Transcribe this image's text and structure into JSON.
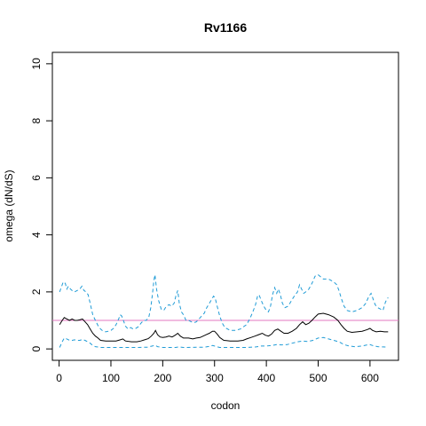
{
  "chart_data": {
    "type": "line",
    "title": "Rv1166",
    "xlabel": "codon",
    "ylabel": "omega (dN/dS)",
    "xlim": [
      -13,
      655
    ],
    "ylim": [
      -0.4,
      10.4
    ],
    "xticks": [
      0,
      100,
      200,
      300,
      400,
      500,
      600
    ],
    "yticks": [
      0,
      2,
      4,
      6,
      8,
      10
    ],
    "grid": false,
    "reference_line": {
      "y": 1,
      "color": "#e377c2"
    },
    "series": [
      {
        "role": "estimate",
        "color": "#000000",
        "dash": "solid",
        "points": [
          [
            1,
            0.85
          ],
          [
            6,
            1.0
          ],
          [
            10,
            1.1
          ],
          [
            15,
            1.05
          ],
          [
            20,
            1.0
          ],
          [
            25,
            1.05
          ],
          [
            30,
            1.0
          ],
          [
            35,
            1.0
          ],
          [
            40,
            1.02
          ],
          [
            45,
            1.05
          ],
          [
            50,
            0.95
          ],
          [
            55,
            0.85
          ],
          [
            60,
            0.7
          ],
          [
            65,
            0.55
          ],
          [
            70,
            0.45
          ],
          [
            75,
            0.38
          ],
          [
            80,
            0.3
          ],
          [
            90,
            0.28
          ],
          [
            100,
            0.28
          ],
          [
            110,
            0.28
          ],
          [
            118,
            0.32
          ],
          [
            123,
            0.35
          ],
          [
            128,
            0.28
          ],
          [
            140,
            0.25
          ],
          [
            150,
            0.25
          ],
          [
            158,
            0.28
          ],
          [
            165,
            0.32
          ],
          [
            172,
            0.36
          ],
          [
            178,
            0.45
          ],
          [
            183,
            0.55
          ],
          [
            186,
            0.65
          ],
          [
            190,
            0.5
          ],
          [
            195,
            0.42
          ],
          [
            200,
            0.4
          ],
          [
            206,
            0.42
          ],
          [
            212,
            0.45
          ],
          [
            218,
            0.42
          ],
          [
            224,
            0.48
          ],
          [
            229,
            0.55
          ],
          [
            234,
            0.45
          ],
          [
            240,
            0.38
          ],
          [
            250,
            0.38
          ],
          [
            258,
            0.35
          ],
          [
            265,
            0.38
          ],
          [
            272,
            0.4
          ],
          [
            278,
            0.45
          ],
          [
            284,
            0.5
          ],
          [
            290,
            0.55
          ],
          [
            296,
            0.62
          ],
          [
            300,
            0.62
          ],
          [
            305,
            0.52
          ],
          [
            310,
            0.4
          ],
          [
            318,
            0.3
          ],
          [
            330,
            0.28
          ],
          [
            345,
            0.28
          ],
          [
            355,
            0.3
          ],
          [
            362,
            0.35
          ],
          [
            370,
            0.4
          ],
          [
            378,
            0.45
          ],
          [
            385,
            0.5
          ],
          [
            392,
            0.55
          ],
          [
            398,
            0.48
          ],
          [
            404,
            0.45
          ],
          [
            410,
            0.52
          ],
          [
            416,
            0.65
          ],
          [
            422,
            0.7
          ],
          [
            428,
            0.62
          ],
          [
            434,
            0.55
          ],
          [
            442,
            0.55
          ],
          [
            450,
            0.62
          ],
          [
            458,
            0.72
          ],
          [
            464,
            0.85
          ],
          [
            470,
            0.95
          ],
          [
            476,
            0.85
          ],
          [
            482,
            0.9
          ],
          [
            488,
            1.0
          ],
          [
            494,
            1.12
          ],
          [
            500,
            1.22
          ],
          [
            510,
            1.25
          ],
          [
            520,
            1.2
          ],
          [
            530,
            1.12
          ],
          [
            538,
            1.0
          ],
          [
            544,
            0.85
          ],
          [
            550,
            0.72
          ],
          [
            556,
            0.62
          ],
          [
            565,
            0.58
          ],
          [
            575,
            0.6
          ],
          [
            585,
            0.62
          ],
          [
            595,
            0.68
          ],
          [
            600,
            0.72
          ],
          [
            605,
            0.65
          ],
          [
            612,
            0.6
          ],
          [
            620,
            0.62
          ],
          [
            628,
            0.6
          ],
          [
            635,
            0.6
          ]
        ]
      },
      {
        "role": "upper-bound",
        "color": "#1f9bd6",
        "dash": "dashed",
        "points": [
          [
            1,
            2.0
          ],
          [
            5,
            2.2
          ],
          [
            8,
            2.35
          ],
          [
            12,
            2.3
          ],
          [
            15,
            2.1
          ],
          [
            18,
            2.2
          ],
          [
            22,
            2.1
          ],
          [
            25,
            2.05
          ],
          [
            30,
            2.0
          ],
          [
            35,
            2.05
          ],
          [
            40,
            2.1
          ],
          [
            44,
            2.2
          ],
          [
            48,
            2.05
          ],
          [
            52,
            2.0
          ],
          [
            56,
            1.9
          ],
          [
            60,
            1.6
          ],
          [
            65,
            1.2
          ],
          [
            70,
            1.0
          ],
          [
            75,
            0.82
          ],
          [
            80,
            0.7
          ],
          [
            85,
            0.62
          ],
          [
            90,
            0.6
          ],
          [
            95,
            0.62
          ],
          [
            100,
            0.65
          ],
          [
            105,
            0.72
          ],
          [
            110,
            0.85
          ],
          [
            115,
            1.05
          ],
          [
            118,
            1.2
          ],
          [
            121,
            1.15
          ],
          [
            125,
            0.95
          ],
          [
            128,
            0.8
          ],
          [
            133,
            0.7
          ],
          [
            138,
            0.75
          ],
          [
            143,
            0.7
          ],
          [
            148,
            0.72
          ],
          [
            153,
            0.78
          ],
          [
            158,
            0.9
          ],
          [
            163,
            1.0
          ],
          [
            168,
            1.0
          ],
          [
            173,
            1.1
          ],
          [
            177,
            1.45
          ],
          [
            180,
            1.9
          ],
          [
            183,
            2.4
          ],
          [
            185,
            2.6
          ],
          [
            188,
            2.1
          ],
          [
            192,
            1.7
          ],
          [
            197,
            1.4
          ],
          [
            202,
            1.35
          ],
          [
            207,
            1.5
          ],
          [
            212,
            1.55
          ],
          [
            217,
            1.5
          ],
          [
            222,
            1.6
          ],
          [
            226,
            1.9
          ],
          [
            229,
            2.05
          ],
          [
            232,
            1.6
          ],
          [
            236,
            1.3
          ],
          [
            240,
            1.2
          ],
          [
            245,
            1.0
          ],
          [
            250,
            1.0
          ],
          [
            255,
            0.95
          ],
          [
            260,
            0.92
          ],
          [
            265,
            0.95
          ],
          [
            270,
            1.05
          ],
          [
            275,
            1.15
          ],
          [
            280,
            1.25
          ],
          [
            285,
            1.45
          ],
          [
            290,
            1.6
          ],
          [
            295,
            1.75
          ],
          [
            298,
            1.85
          ],
          [
            301,
            1.8
          ],
          [
            305,
            1.5
          ],
          [
            310,
            1.15
          ],
          [
            315,
            0.9
          ],
          [
            320,
            0.75
          ],
          [
            330,
            0.65
          ],
          [
            340,
            0.65
          ],
          [
            350,
            0.7
          ],
          [
            356,
            0.78
          ],
          [
            362,
            0.85
          ],
          [
            368,
            1.05
          ],
          [
            374,
            1.3
          ],
          [
            379,
            1.55
          ],
          [
            383,
            1.85
          ],
          [
            386,
            1.9
          ],
          [
            390,
            1.7
          ],
          [
            395,
            1.5
          ],
          [
            400,
            1.35
          ],
          [
            404,
            1.3
          ],
          [
            408,
            1.5
          ],
          [
            412,
            1.9
          ],
          [
            416,
            2.15
          ],
          [
            420,
            1.95
          ],
          [
            423,
            2.1
          ],
          [
            427,
            1.9
          ],
          [
            431,
            1.6
          ],
          [
            436,
            1.45
          ],
          [
            442,
            1.5
          ],
          [
            447,
            1.65
          ],
          [
            452,
            1.8
          ],
          [
            456,
            1.9
          ],
          [
            460,
            2.0
          ],
          [
            464,
            2.25
          ],
          [
            468,
            2.1
          ],
          [
            472,
            1.95
          ],
          [
            476,
            2.0
          ],
          [
            482,
            2.1
          ],
          [
            488,
            2.3
          ],
          [
            494,
            2.55
          ],
          [
            500,
            2.6
          ],
          [
            510,
            2.45
          ],
          [
            520,
            2.45
          ],
          [
            530,
            2.35
          ],
          [
            536,
            2.25
          ],
          [
            540,
            2.05
          ],
          [
            545,
            1.75
          ],
          [
            550,
            1.5
          ],
          [
            556,
            1.35
          ],
          [
            565,
            1.3
          ],
          [
            575,
            1.35
          ],
          [
            585,
            1.45
          ],
          [
            592,
            1.6
          ],
          [
            598,
            1.85
          ],
          [
            602,
            1.95
          ],
          [
            606,
            1.75
          ],
          [
            610,
            1.55
          ],
          [
            615,
            1.45
          ],
          [
            620,
            1.4
          ],
          [
            625,
            1.35
          ],
          [
            630,
            1.65
          ],
          [
            635,
            1.8
          ]
        ]
      },
      {
        "role": "lower-bound",
        "color": "#1f9bd6",
        "dash": "dashed",
        "points": [
          [
            1,
            0.05
          ],
          [
            6,
            0.25
          ],
          [
            10,
            0.38
          ],
          [
            15,
            0.35
          ],
          [
            20,
            0.3
          ],
          [
            25,
            0.3
          ],
          [
            30,
            0.32
          ],
          [
            35,
            0.3
          ],
          [
            40,
            0.3
          ],
          [
            45,
            0.33
          ],
          [
            50,
            0.3
          ],
          [
            55,
            0.25
          ],
          [
            60,
            0.2
          ],
          [
            65,
            0.12
          ],
          [
            70,
            0.08
          ],
          [
            80,
            0.05
          ],
          [
            100,
            0.05
          ],
          [
            150,
            0.05
          ],
          [
            170,
            0.06
          ],
          [
            180,
            0.1
          ],
          [
            185,
            0.13
          ],
          [
            190,
            0.08
          ],
          [
            200,
            0.05
          ],
          [
            225,
            0.05
          ],
          [
            230,
            0.07
          ],
          [
            240,
            0.05
          ],
          [
            280,
            0.06
          ],
          [
            290,
            0.09
          ],
          [
            296,
            0.12
          ],
          [
            300,
            0.1
          ],
          [
            310,
            0.05
          ],
          [
            360,
            0.05
          ],
          [
            380,
            0.07
          ],
          [
            390,
            0.1
          ],
          [
            400,
            0.1
          ],
          [
            410,
            0.12
          ],
          [
            420,
            0.15
          ],
          [
            430,
            0.14
          ],
          [
            440,
            0.15
          ],
          [
            450,
            0.2
          ],
          [
            460,
            0.25
          ],
          [
            470,
            0.28
          ],
          [
            480,
            0.26
          ],
          [
            490,
            0.3
          ],
          [
            500,
            0.38
          ],
          [
            510,
            0.4
          ],
          [
            520,
            0.35
          ],
          [
            530,
            0.3
          ],
          [
            540,
            0.25
          ],
          [
            550,
            0.15
          ],
          [
            560,
            0.1
          ],
          [
            570,
            0.08
          ],
          [
            585,
            0.1
          ],
          [
            595,
            0.14
          ],
          [
            600,
            0.15
          ],
          [
            605,
            0.12
          ],
          [
            615,
            0.08
          ],
          [
            625,
            0.07
          ],
          [
            635,
            0.06
          ]
        ]
      }
    ]
  }
}
